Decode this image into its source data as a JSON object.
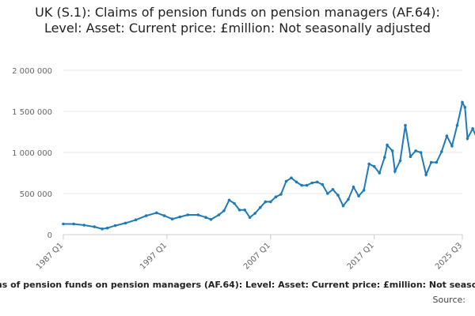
{
  "chart_data": {
    "type": "line",
    "title": "UK (S.1): Claims of pension funds on pension managers (AF.64): Level: Asset: Current price: £million: Not seasonally adjusted",
    "xlabel": "UK (S.1): Claims of pension funds on pension managers (AF.64): Level: Asset: Current price: £million: Not seasonally adjusted",
    "ylabel": "",
    "source_label": "Source:",
    "ylim": [
      0,
      2000000
    ],
    "y_ticks": [
      "0",
      "500 000",
      "1 000 000",
      "1 500 000",
      "2 000 000"
    ],
    "x_ticks": [
      "1987 Q1",
      "1997 Q1",
      "2007 Q1",
      "2017 Q1",
      "2025 Q3"
    ],
    "grid": true,
    "legend": "none",
    "colors": {
      "line": "#1f7ab8",
      "grid": "#e5e5e5",
      "axis": "#cccccc"
    },
    "series": [
      {
        "points": [
          [
            "1987 Q1",
            130000
          ],
          [
            "1988 Q1",
            130000
          ],
          [
            "1989 Q1",
            115000
          ],
          [
            "1990 Q1",
            95000
          ],
          [
            "1990 Q4",
            70000
          ],
          [
            "1991 Q2",
            80000
          ],
          [
            "1992 Q1",
            110000
          ],
          [
            "1993 Q1",
            140000
          ],
          [
            "1994 Q1",
            180000
          ],
          [
            "1995 Q1",
            230000
          ],
          [
            "1996 Q1",
            265000
          ],
          [
            "1996 Q4",
            230000
          ],
          [
            "1997 Q3",
            190000
          ],
          [
            "1998 Q2",
            215000
          ],
          [
            "1999 Q1",
            240000
          ],
          [
            "2000 Q1",
            240000
          ],
          [
            "2000 Q4",
            210000
          ],
          [
            "2001 Q2",
            185000
          ],
          [
            "2002 Q1",
            240000
          ],
          [
            "2002 Q3",
            290000
          ],
          [
            "2003 Q1",
            420000
          ],
          [
            "2003 Q3",
            380000
          ],
          [
            "2004 Q1",
            300000
          ],
          [
            "2004 Q3",
            300000
          ],
          [
            "2005 Q1",
            210000
          ],
          [
            "2005 Q3",
            260000
          ],
          [
            "2006 Q1",
            330000
          ],
          [
            "2006 Q3",
            400000
          ],
          [
            "2007 Q1",
            400000
          ],
          [
            "2007 Q3",
            460000
          ],
          [
            "2008 Q1",
            490000
          ],
          [
            "2008 Q3",
            650000
          ],
          [
            "2009 Q1",
            690000
          ],
          [
            "2009 Q3",
            640000
          ],
          [
            "2010 Q1",
            600000
          ],
          [
            "2010 Q3",
            600000
          ],
          [
            "2011 Q1",
            630000
          ],
          [
            "2011 Q3",
            640000
          ],
          [
            "2012 Q1",
            610000
          ],
          [
            "2012 Q3",
            500000
          ],
          [
            "2013 Q1",
            550000
          ],
          [
            "2013 Q3",
            480000
          ],
          [
            "2014 Q1",
            350000
          ],
          [
            "2014 Q3",
            430000
          ],
          [
            "2015 Q1",
            580000
          ],
          [
            "2015 Q3",
            470000
          ],
          [
            "2016 Q1",
            540000
          ],
          [
            "2016 Q3",
            860000
          ],
          [
            "2017 Q1",
            830000
          ],
          [
            "2017 Q3",
            750000
          ],
          [
            "2018 Q1",
            940000
          ],
          [
            "2018 Q2",
            1090000
          ],
          [
            "2018 Q4",
            1020000
          ],
          [
            "2019 Q1",
            770000
          ],
          [
            "2019 Q3",
            900000
          ],
          [
            "2020 Q1",
            1330000
          ],
          [
            "2020 Q3",
            950000
          ],
          [
            "2021 Q1",
            1020000
          ],
          [
            "2021 Q3",
            1000000
          ],
          [
            "2022 Q1",
            730000
          ],
          [
            "2022 Q3",
            880000
          ],
          [
            "2023 Q1",
            880000
          ],
          [
            "2023 Q3",
            1010000
          ],
          [
            "2024 Q1",
            1200000
          ],
          [
            "2024 Q3",
            1080000
          ],
          [
            "2025 Q1",
            1330000
          ],
          [
            "2025 Q3",
            1610000
          ],
          [
            "2025 Q4",
            1550000
          ],
          [
            "2026 Q1",
            1170000
          ],
          [
            "2026 Q3",
            1290000
          ],
          [
            "2027 Q1",
            1150000
          ],
          [
            "2027 Q3",
            1100000
          ],
          [
            "2028 Q1",
            990000
          ],
          [
            "2028 Q3",
            760000
          ],
          [
            "2029 Q1",
            830000
          ],
          [
            "2029 Q3",
            860000
          ],
          [
            "2030 Q1",
            1010000
          ],
          [
            "2030 Q3",
            880000
          ],
          [
            "2031 Q1",
            960000
          ],
          [
            "2031 Q3",
            790000
          ],
          [
            "2032 Q1",
            600000
          ],
          [
            "2032 Q3",
            650000
          ],
          [
            "2033 Q1",
            500000
          ],
          [
            "2033 Q3",
            320000
          ],
          [
            "2034 Q1",
            180000
          ],
          [
            "2034 Q3",
            250000
          ],
          [
            "2035 Q1",
            150000
          ],
          [
            "2035 Q3",
            190000
          ],
          [
            "2036 Q1",
            210000
          ],
          [
            "2036 Q3",
            170000
          ],
          [
            "2037 Q1",
            170000
          ],
          [
            "2037 Q3",
            160000
          ]
        ]
      }
    ]
  }
}
